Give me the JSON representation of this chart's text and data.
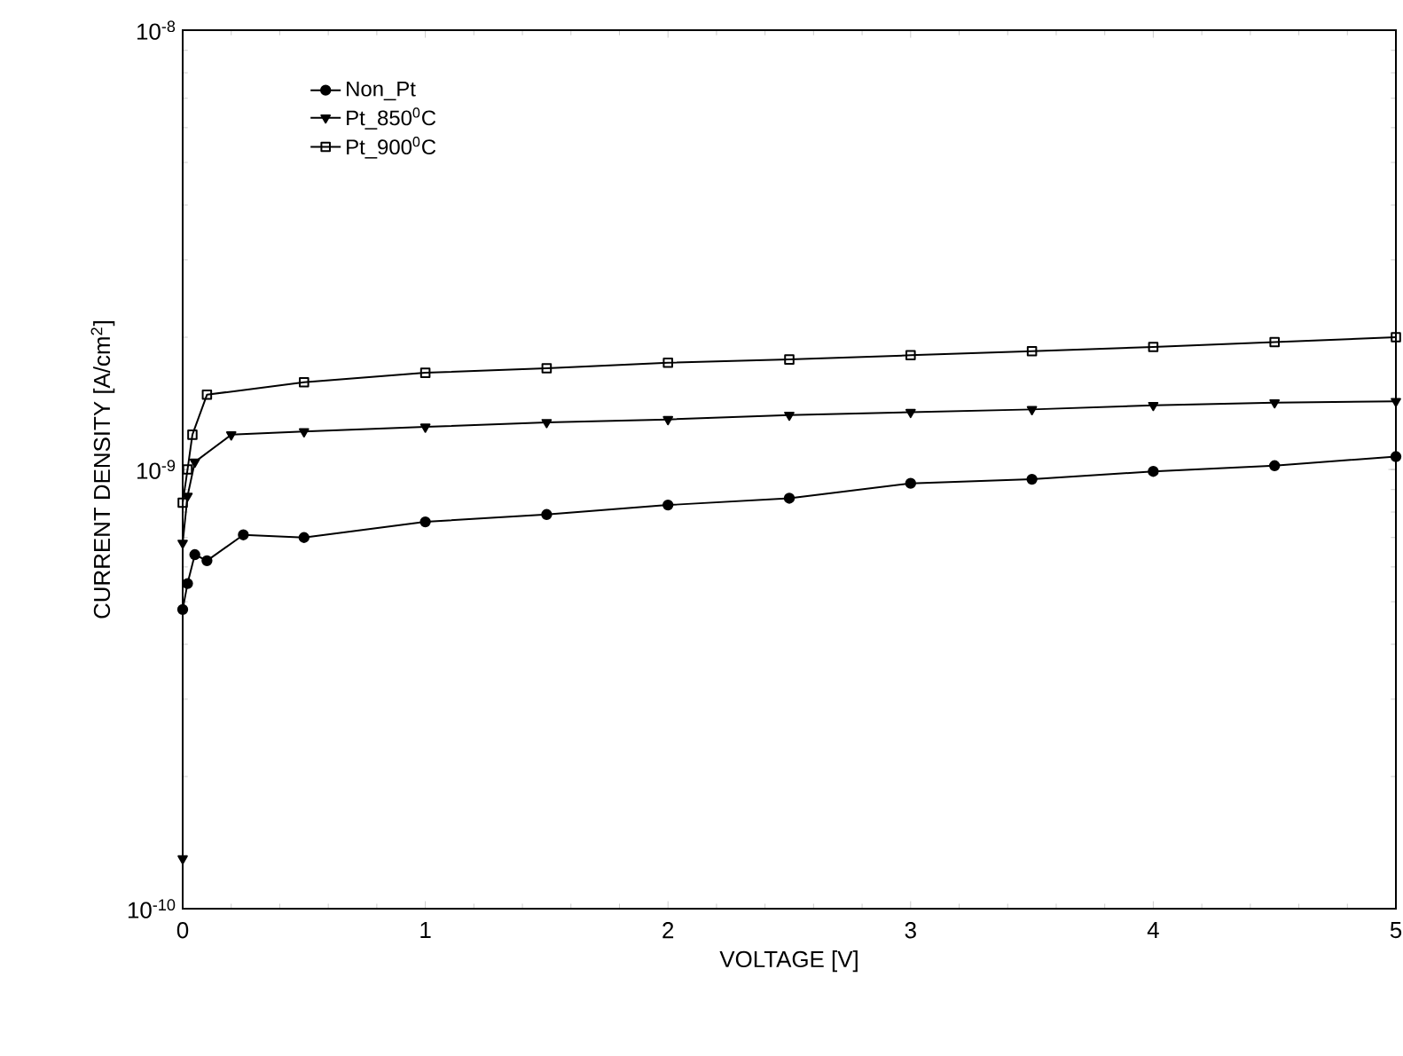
{
  "chart_data": {
    "type": "line",
    "xlabel": "VOLTAGE [V]",
    "ylabel": "CURRENT DENSITY [A/cm$^{2}$]",
    "log": "y",
    "xlim": [
      0,
      5
    ],
    "ylim": [
      1e-10,
      1e-08
    ],
    "xticks": [
      0,
      1,
      2,
      3,
      4,
      5
    ],
    "yticks": [
      {
        "value": 1e-10,
        "label": "10$^{-10}$"
      },
      {
        "value": 1e-09,
        "label": "10$^{-9}$"
      },
      {
        "value": 1e-08,
        "label": "10$^{-8}$"
      }
    ],
    "grid": false,
    "legend": "top left",
    "series": [
      {
        "name": "Non_Pt",
        "color": "#000000",
        "marker": "circle",
        "x": [
          0,
          0.02,
          0.05,
          0.1,
          0.25,
          0.5,
          1,
          1.5,
          2,
          2.5,
          3,
          3.5,
          4,
          4.5,
          5
        ],
        "values": [
          4.8e-10,
          5.5e-10,
          6.4e-10,
          6.2e-10,
          7.1e-10,
          7e-10,
          7.6e-10,
          7.9e-10,
          8.3e-10,
          8.6e-10,
          9.3e-10,
          9.5e-10,
          9.9e-10,
          1.02e-09,
          1.07e-09
        ]
      },
      {
        "name": "Pt_850$^{0}$C",
        "color": "#000000",
        "marker": "triangle",
        "x": [
          0,
          0,
          0.02,
          0.05,
          0.2,
          0.5,
          1,
          1.5,
          2,
          2.5,
          3,
          3.5,
          4,
          4.5,
          5
        ],
        "values": [
          1.3e-10,
          6.8e-10,
          8.7e-10,
          1.04e-09,
          1.2e-09,
          1.22e-09,
          1.25e-09,
          1.28e-09,
          1.3e-09,
          1.33e-09,
          1.35e-09,
          1.37e-09,
          1.4e-09,
          1.42e-09,
          1.43e-09
        ]
      },
      {
        "name": "Pt_900$^{0}$C",
        "color": "#000000",
        "marker": "square",
        "x": [
          0,
          0.02,
          0.04,
          0.1,
          0.5,
          1,
          1.5,
          2,
          2.5,
          3,
          3.5,
          4,
          4.5,
          5
        ],
        "values": [
          8.4e-10,
          1e-09,
          1.2e-09,
          1.48e-09,
          1.58e-09,
          1.66e-09,
          1.7e-09,
          1.75e-09,
          1.78e-09,
          1.82e-09,
          1.86e-09,
          1.9e-09,
          1.95e-09,
          2e-09
        ]
      }
    ]
  }
}
